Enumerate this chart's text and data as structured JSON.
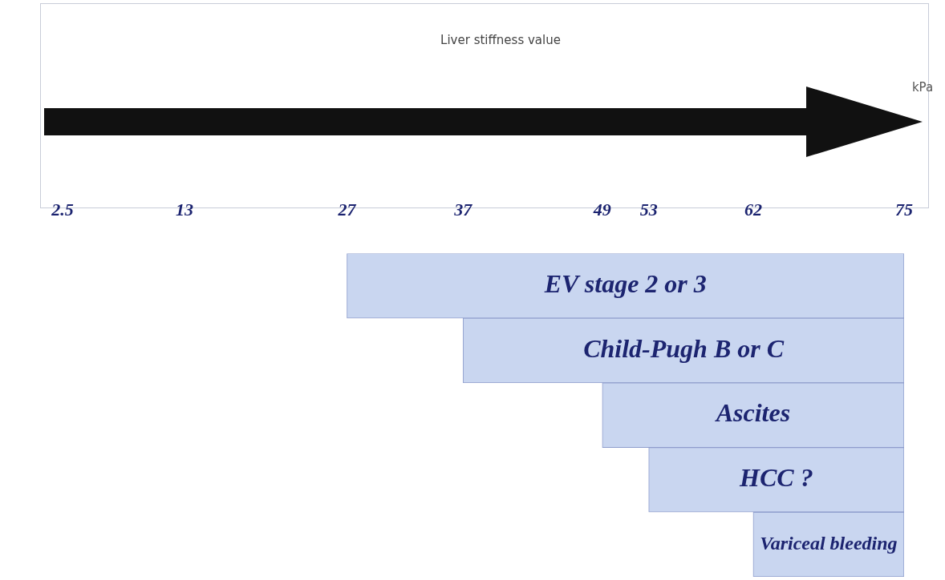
{
  "chart_data": {
    "type": "bar",
    "orientation": "horizontal",
    "title": "Liver stiffness value",
    "annotations": [
      "kPa"
    ],
    "categories": [
      "EV stage 2 or 3",
      "Child-Pugh B or C",
      "Ascites",
      "HCC ?",
      "Variceal bleeding"
    ],
    "base": [
      27,
      37,
      49,
      53,
      62
    ],
    "values": [
      48,
      38,
      26,
      22,
      13
    ],
    "color": "#c9d6f0",
    "xlim": [
      2.5,
      75
    ],
    "xticks": [
      2.5,
      13,
      27,
      37,
      49,
      53,
      62,
      75
    ],
    "grid": false,
    "legend": false
  }
}
